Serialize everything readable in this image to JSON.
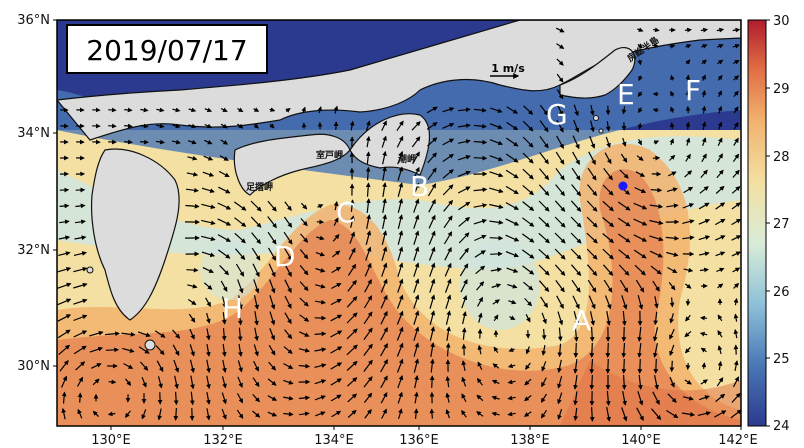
{
  "date_label": "2019/07/17",
  "scale_arrow_label": "1 m/s",
  "lat_ticks": [
    "36°N",
    "34°N",
    "32°N",
    "30°N"
  ],
  "lon_ticks": [
    "130°E",
    "132°E",
    "134°E",
    "136°E",
    "138°E",
    "140°E",
    "142°E"
  ],
  "colorbar": {
    "ticks": [
      "30",
      "29",
      "28",
      "27",
      "26",
      "25",
      "24"
    ],
    "min": 24,
    "max": 30,
    "colors": [
      "#2b3a8f",
      "#4a78b5",
      "#8ec1d8",
      "#d9ecd8",
      "#f3e0a2",
      "#f2b36f",
      "#e06d44",
      "#b01c2e"
    ]
  },
  "region_labels": [
    "A",
    "B",
    "C",
    "D",
    "E",
    "F",
    "G",
    "H"
  ],
  "place_names": [
    "室戸岬",
    "足摺岬",
    "潮岬",
    "房総半島"
  ],
  "colors": {
    "land": "#dcdcdc",
    "coast": "#111111",
    "station_marker": "#1a1aff"
  }
}
